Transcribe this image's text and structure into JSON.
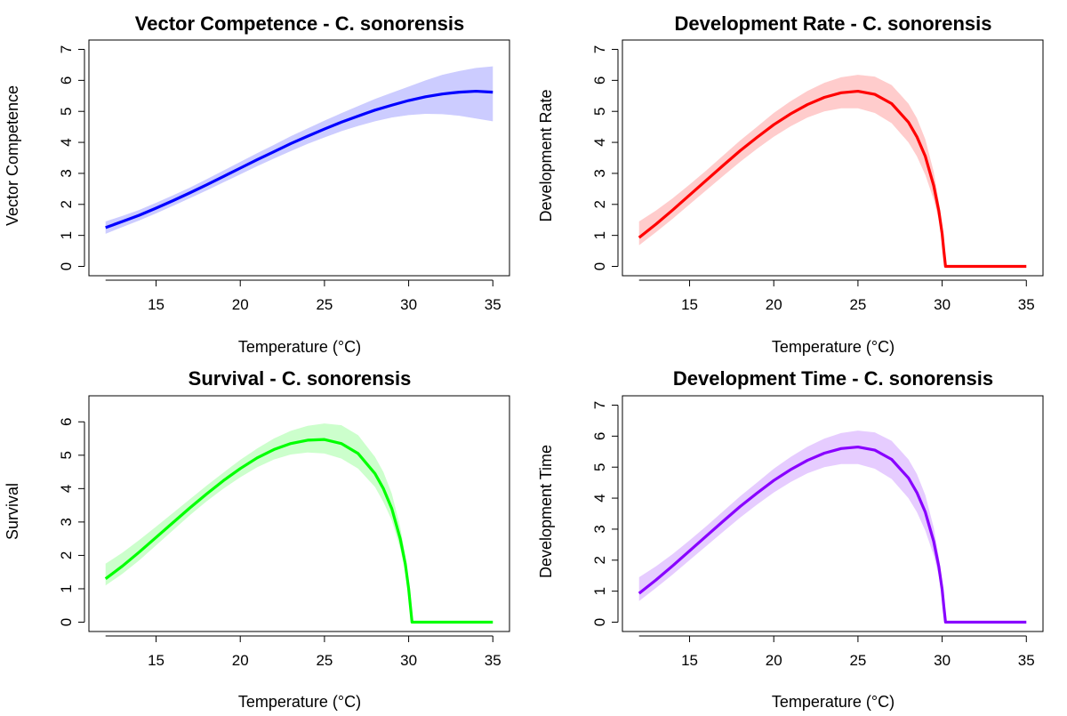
{
  "chart_data": [
    {
      "type": "line",
      "title": "Vector Competence - C. sonorensis",
      "xlabel": "Temperature (°C)",
      "ylabel": "Vector Competence",
      "xlim": [
        12,
        35
      ],
      "ylim": [
        0,
        7
      ],
      "xticks": [
        15,
        20,
        25,
        30,
        35
      ],
      "yticks": [
        0,
        1,
        2,
        3,
        4,
        5,
        6,
        7
      ],
      "grid": false,
      "color": "#0000ff",
      "band_color": "#ccccff",
      "series": [
        {
          "x": [
            12,
            13,
            14,
            15,
            16,
            17,
            18,
            19,
            20,
            21,
            22,
            23,
            24,
            25,
            26,
            27,
            28,
            29,
            30,
            31,
            32,
            33,
            34,
            35
          ],
          "values": [
            1.25,
            1.45,
            1.65,
            1.88,
            2.12,
            2.37,
            2.63,
            2.9,
            3.17,
            3.44,
            3.7,
            3.96,
            4.2,
            4.43,
            4.65,
            4.85,
            5.04,
            5.2,
            5.35,
            5.47,
            5.56,
            5.62,
            5.65,
            5.62
          ],
          "lower": [
            1.05,
            1.27,
            1.48,
            1.71,
            1.95,
            2.2,
            2.45,
            2.71,
            2.97,
            3.23,
            3.48,
            3.72,
            3.95,
            4.16,
            4.36,
            4.53,
            4.68,
            4.8,
            4.88,
            4.92,
            4.91,
            4.86,
            4.77,
            4.68
          ],
          "upper": [
            1.45,
            1.63,
            1.82,
            2.05,
            2.29,
            2.54,
            2.81,
            3.09,
            3.37,
            3.65,
            3.92,
            4.2,
            4.45,
            4.7,
            4.94,
            5.17,
            5.4,
            5.6,
            5.8,
            6.0,
            6.18,
            6.3,
            6.4,
            6.45
          ]
        }
      ]
    },
    {
      "type": "line",
      "title": "Development Rate - C. sonorensis",
      "xlabel": "Temperature (°C)",
      "ylabel": "Development Rate",
      "xlim": [
        12,
        35
      ],
      "ylim": [
        0,
        7
      ],
      "xticks": [
        15,
        20,
        25,
        30,
        35
      ],
      "yticks": [
        0,
        1,
        2,
        3,
        4,
        5,
        6,
        7
      ],
      "grid": false,
      "color": "#ff0000",
      "band_color": "#ffcccc",
      "series": [
        {
          "x": [
            12,
            13,
            14,
            15,
            16,
            17,
            18,
            19,
            20,
            21,
            22,
            23,
            24,
            25,
            26,
            27,
            28,
            28.5,
            29,
            29.5,
            29.8,
            30.0,
            30.1,
            30.2,
            31,
            32,
            33,
            34,
            35
          ],
          "values": [
            0.93,
            1.36,
            1.82,
            2.3,
            2.78,
            3.26,
            3.73,
            4.16,
            4.57,
            4.92,
            5.22,
            5.45,
            5.6,
            5.65,
            5.55,
            5.25,
            4.65,
            4.18,
            3.55,
            2.6,
            1.8,
            1.05,
            0.5,
            0.0,
            0.0,
            0.0,
            0.0,
            0.0,
            0.0
          ],
          "lower": [
            0.68,
            1.1,
            1.54,
            2.0,
            2.46,
            2.92,
            3.37,
            3.79,
            4.18,
            4.52,
            4.8,
            5.0,
            5.1,
            5.1,
            4.95,
            4.62,
            4.0,
            3.55,
            2.95,
            2.15,
            1.5,
            0.85,
            0.4,
            0.0,
            0.0,
            0.0,
            0.0,
            0.0,
            0.0
          ],
          "upper": [
            1.45,
            1.8,
            2.2,
            2.64,
            3.1,
            3.58,
            4.06,
            4.5,
            4.95,
            5.33,
            5.66,
            5.92,
            6.1,
            6.18,
            6.12,
            5.85,
            5.25,
            4.78,
            4.1,
            3.05,
            2.1,
            1.25,
            0.6,
            0.0,
            0.0,
            0.0,
            0.0,
            0.0,
            0.0
          ]
        }
      ]
    },
    {
      "type": "line",
      "title": "Survival - C. sonorensis",
      "xlabel": "Temperature (°C)",
      "ylabel": "Survival",
      "xlim": [
        12,
        35
      ],
      "ylim": [
        0,
        6.5
      ],
      "xticks": [
        15,
        20,
        25,
        30,
        35
      ],
      "yticks": [
        0,
        1,
        2,
        3,
        4,
        5,
        6
      ],
      "grid": false,
      "color": "#00ff00",
      "band_color": "#ccffcc",
      "series": [
        {
          "x": [
            12,
            13,
            14,
            15,
            16,
            17,
            18,
            19,
            20,
            21,
            22,
            23,
            24,
            25,
            26,
            27,
            28,
            28.5,
            29,
            29.5,
            29.8,
            30.0,
            30.1,
            30.2,
            31,
            32,
            33,
            34,
            35
          ],
          "values": [
            1.3,
            1.68,
            2.1,
            2.54,
            2.98,
            3.42,
            3.84,
            4.24,
            4.6,
            4.92,
            5.17,
            5.35,
            5.45,
            5.47,
            5.35,
            5.05,
            4.45,
            4.0,
            3.4,
            2.5,
            1.75,
            1.0,
            0.5,
            0.0,
            0.0,
            0.0,
            0.0,
            0.0,
            0.0
          ],
          "lower": [
            1.1,
            1.45,
            1.85,
            2.3,
            2.75,
            3.2,
            3.62,
            4.0,
            4.34,
            4.64,
            4.87,
            5.02,
            5.08,
            5.05,
            4.9,
            4.6,
            4.05,
            3.6,
            3.05,
            2.2,
            1.5,
            0.85,
            0.42,
            0.0,
            0.0,
            0.0,
            0.0,
            0.0,
            0.0
          ],
          "upper": [
            1.75,
            2.08,
            2.46,
            2.86,
            3.27,
            3.68,
            4.09,
            4.48,
            4.86,
            5.2,
            5.5,
            5.73,
            5.88,
            5.95,
            5.9,
            5.6,
            4.95,
            4.5,
            3.85,
            2.85,
            2.0,
            1.15,
            0.58,
            0.0,
            0.0,
            0.0,
            0.0,
            0.0,
            0.0
          ]
        }
      ]
    },
    {
      "type": "line",
      "title": "Development Time - C. sonorensis",
      "xlabel": "Temperature (°C)",
      "ylabel": "Development Time",
      "xlim": [
        12,
        35
      ],
      "ylim": [
        0,
        7
      ],
      "xticks": [
        15,
        20,
        25,
        30,
        35
      ],
      "yticks": [
        0,
        1,
        2,
        3,
        4,
        5,
        6,
        7
      ],
      "grid": false,
      "color": "#8800ff",
      "band_color": "#e6ccff",
      "series": [
        {
          "x": [
            12,
            13,
            14,
            15,
            16,
            17,
            18,
            19,
            20,
            21,
            22,
            23,
            24,
            25,
            26,
            27,
            28,
            28.5,
            29,
            29.5,
            29.8,
            30.0,
            30.1,
            30.2,
            31,
            32,
            33,
            34,
            35
          ],
          "values": [
            0.93,
            1.36,
            1.82,
            2.3,
            2.78,
            3.26,
            3.73,
            4.16,
            4.57,
            4.92,
            5.22,
            5.45,
            5.6,
            5.65,
            5.55,
            5.25,
            4.65,
            4.18,
            3.55,
            2.6,
            1.8,
            1.05,
            0.5,
            0.0,
            0.0,
            0.0,
            0.0,
            0.0,
            0.0
          ],
          "lower": [
            0.68,
            1.1,
            1.54,
            2.0,
            2.46,
            2.92,
            3.37,
            3.79,
            4.18,
            4.52,
            4.8,
            5.0,
            5.1,
            5.1,
            4.95,
            4.62,
            4.0,
            3.55,
            2.95,
            2.15,
            1.5,
            0.85,
            0.4,
            0.0,
            0.0,
            0.0,
            0.0,
            0.0,
            0.0
          ],
          "upper": [
            1.45,
            1.8,
            2.2,
            2.64,
            3.1,
            3.58,
            4.06,
            4.5,
            4.95,
            5.33,
            5.66,
            5.92,
            6.1,
            6.18,
            6.12,
            5.85,
            5.25,
            4.78,
            4.1,
            3.05,
            2.1,
            1.25,
            0.6,
            0.0,
            0.0,
            0.0,
            0.0,
            0.0,
            0.0
          ]
        }
      ]
    }
  ]
}
